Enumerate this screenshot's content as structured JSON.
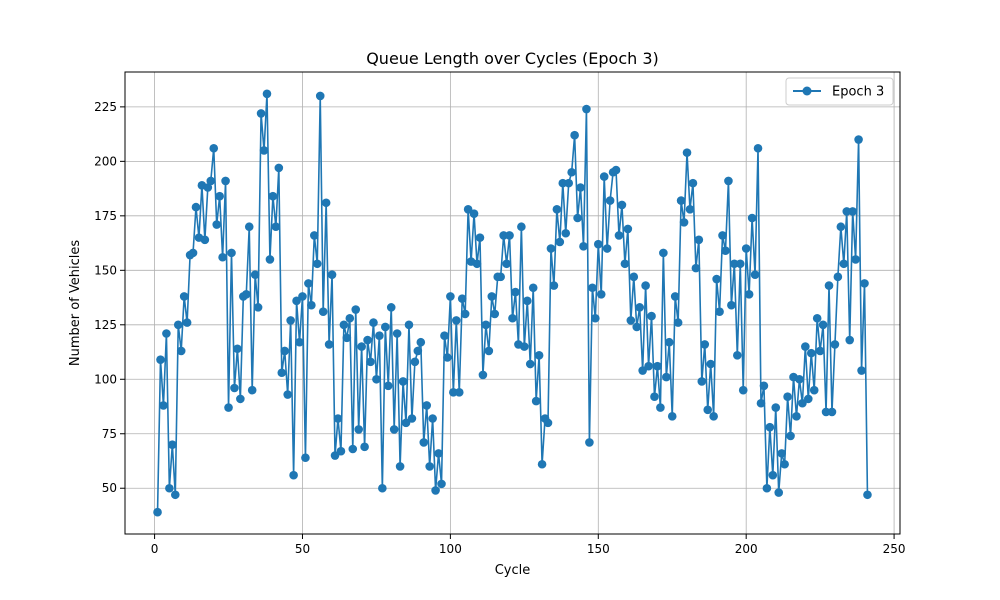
{
  "chart_data": {
    "type": "line",
    "title": "Queue Length over Cycles (Epoch 3)",
    "xlabel": "Cycle",
    "ylabel": "Number of Vehicles",
    "xlim": [
      -10,
      252
    ],
    "ylim": [
      29,
      241
    ],
    "xticks": [
      0,
      50,
      100,
      150,
      200,
      250
    ],
    "yticks": [
      50,
      75,
      100,
      125,
      150,
      175,
      200,
      225
    ],
    "grid": true,
    "legend": "top-right",
    "series": [
      {
        "name": "Epoch 3",
        "color": "#1f77b4",
        "marker": "circle",
        "x_start": 1,
        "values": [
          39,
          109,
          88,
          121,
          50,
          70,
          47,
          125,
          113,
          138,
          126,
          157,
          158,
          179,
          165,
          189,
          164,
          188,
          191,
          206,
          171,
          184,
          156,
          191,
          87,
          158,
          96,
          114,
          91,
          138,
          139,
          170,
          95,
          148,
          133,
          222,
          205,
          231,
          155,
          184,
          170,
          197,
          103,
          113,
          93,
          127,
          56,
          136,
          117,
          138,
          64,
          144,
          134,
          166,
          153,
          230,
          131,
          181,
          116,
          148,
          65,
          82,
          67,
          125,
          119,
          128,
          68,
          132,
          77,
          115,
          69,
          118,
          108,
          126,
          100,
          120,
          50,
          124,
          97,
          133,
          77,
          121,
          60,
          99,
          80,
          125,
          82,
          108,
          113,
          117,
          71,
          88,
          60,
          82,
          49,
          66,
          52,
          120,
          110,
          138,
          94,
          127,
          94,
          137,
          130,
          178,
          154,
          176,
          153,
          165,
          102,
          125,
          113,
          138,
          130,
          147,
          147,
          166,
          153,
          166,
          128,
          140,
          116,
          170,
          115,
          136,
          107,
          142,
          90,
          111,
          61,
          82,
          80,
          160,
          143,
          178,
          163,
          190,
          167,
          190,
          195,
          212,
          174,
          188,
          161,
          224,
          71,
          142,
          128,
          162,
          139,
          193,
          160,
          182,
          195,
          196,
          166,
          180,
          153,
          169,
          127,
          147,
          124,
          133,
          104,
          143,
          106,
          129,
          92,
          106,
          87,
          158,
          101,
          117,
          83,
          138,
          126,
          182,
          172,
          204,
          178,
          190,
          151,
          164,
          99,
          116,
          86,
          107,
          83,
          146,
          131,
          166,
          159,
          191,
          134,
          153,
          111,
          153,
          95,
          160,
          139,
          174,
          148,
          206,
          89,
          97,
          50,
          78,
          56,
          87,
          48,
          66,
          61,
          92,
          74,
          101,
          83,
          100,
          89,
          115,
          91,
          112,
          95,
          128,
          113,
          125,
          85,
          143,
          85,
          116,
          147,
          170,
          153,
          177,
          118,
          177,
          155,
          210,
          104,
          144,
          47
        ]
      }
    ]
  }
}
